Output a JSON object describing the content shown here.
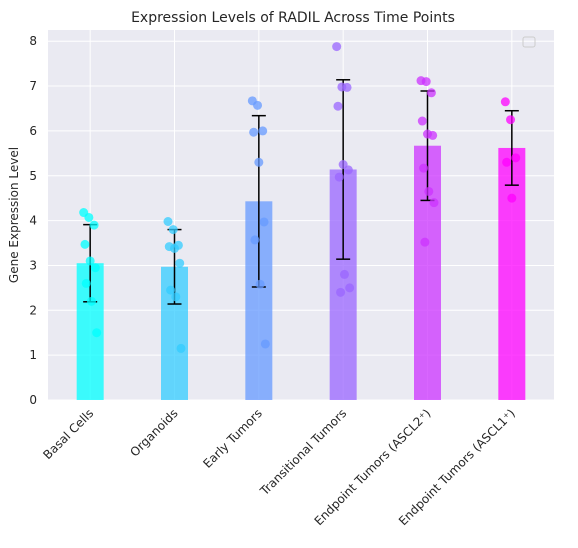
{
  "chart_data": {
    "type": "bar",
    "title": "Expression Levels of RADIL Across Time Points",
    "xlabel": "",
    "ylabel": "Gene Expression Level",
    "ylim": [
      0,
      8.25
    ],
    "yticks": [
      0,
      1,
      2,
      3,
      4,
      5,
      6,
      7,
      8
    ],
    "grid": true,
    "legend": "top-right (empty)",
    "categories": [
      "Basal Cells",
      "Organoids",
      "Early Tumors",
      "Transitional Tumors",
      "Endpoint Tumors (ASCL2⁺)",
      "Endpoint Tumors (ASCL1⁺)"
    ],
    "colors": [
      "#00ffff",
      "#33ccff",
      "#6699ff",
      "#9966ff",
      "#cc33ff",
      "#ff00ff"
    ],
    "values": [
      3.05,
      2.97,
      4.43,
      5.14,
      5.67,
      5.62
    ],
    "error": [
      0.86,
      0.83,
      1.91,
      2.0,
      1.22,
      0.83
    ],
    "points": [
      [
        4.18,
        4.07,
        3.9,
        3.47,
        3.1,
        2.95,
        2.6,
        2.2,
        1.5
      ],
      [
        3.98,
        3.8,
        3.45,
        3.42,
        3.38,
        3.05,
        2.45,
        2.3,
        1.15
      ],
      [
        6.67,
        6.57,
        6.0,
        5.97,
        5.3,
        3.97,
        3.57,
        2.58,
        1.25
      ],
      [
        7.88,
        6.98,
        6.97,
        6.55,
        5.25,
        5.13,
        4.97,
        2.8,
        2.5,
        2.4
      ],
      [
        7.12,
        7.1,
        6.85,
        6.22,
        5.93,
        5.9,
        5.17,
        4.65,
        4.4,
        3.52
      ],
      [
        6.65,
        6.25,
        5.4,
        5.3,
        4.5
      ]
    ]
  }
}
